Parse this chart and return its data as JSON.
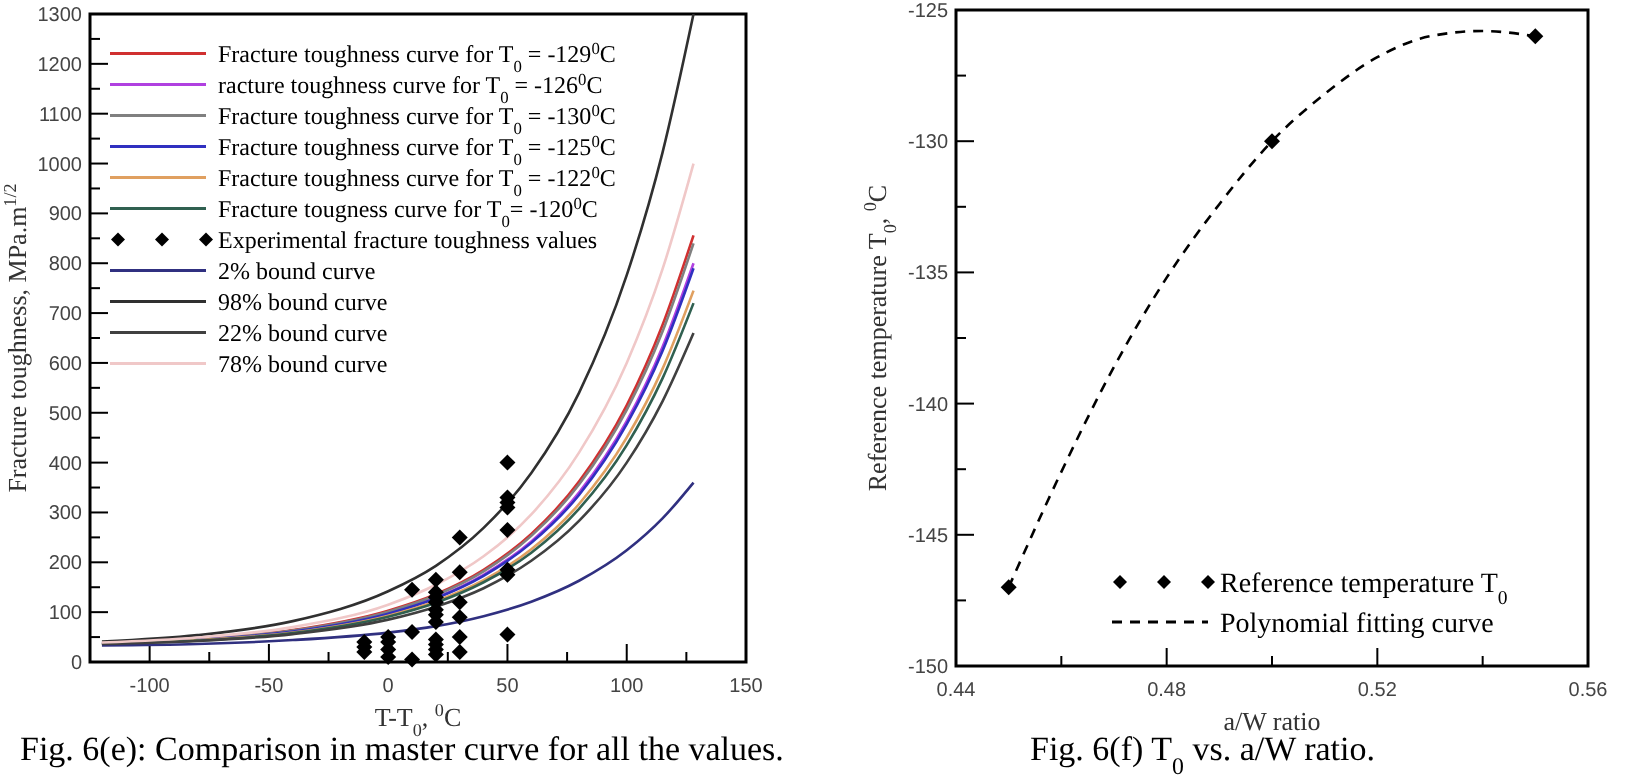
{
  "chart_data": [
    {
      "type": "line",
      "xlabel": "T-T$_{0}$, $^{0}$C",
      "ylabel": "Fracture toughness, MPa.m$^{1/2}$",
      "annotations": [
        "Fig. 6(e): Comparison in master curve for all the values."
      ],
      "xlim": [
        -125,
        150
      ],
      "ylim": [
        0,
        1300
      ],
      "xticks": [
        -100,
        {
          "value": -75,
          "label": null
        },
        -50,
        {
          "value": -25,
          "label": null
        },
        0,
        {
          "value": 25,
          "label": null
        },
        50,
        {
          "value": 75,
          "label": null
        },
        100,
        {
          "value": 125,
          "label": null
        },
        150
      ],
      "yticks": [
        0,
        {
          "value": 50,
          "label": null
        },
        100,
        {
          "value": 150,
          "label": null
        },
        200,
        {
          "value": 250,
          "label": null
        },
        300,
        {
          "value": 350,
          "label": null
        },
        400,
        {
          "value": 450,
          "label": null
        },
        500,
        {
          "value": 550,
          "label": null
        },
        600,
        {
          "value": 650,
          "label": null
        },
        700,
        {
          "value": 750,
          "label": null
        },
        800,
        {
          "value": 850,
          "label": null
        },
        900,
        {
          "value": 950,
          "label": null
        },
        1000,
        {
          "value": 1050,
          "label": null
        },
        1100,
        {
          "value": 1150,
          "label": null
        },
        1200,
        {
          "value": 1250,
          "label": null
        },
        1300
      ],
      "legend": "top left",
      "x": [
        -120,
        -80,
        -40,
        0,
        20,
        40,
        60,
        80,
        100,
        115,
        128
      ],
      "series": [
        {
          "name": "Fracture toughness curve for T$_{0}$ = -129$^{0}$C",
          "color": "#d03030",
          "values": [
            37,
            46,
            64,
            103,
            136,
            185,
            257,
            362,
            515,
            676,
            856
          ]
        },
        {
          "name": "racture toughness curve for T$_{0}$ = -126$^{0}$C",
          "color": "#b040e0",
          "values": [
            null,
            null,
            null,
            98,
            129,
            175,
            242,
            340,
            483,
            632,
            800
          ]
        },
        {
          "name": "Fracture toughness curve for T$_{0}$ = -130$^{0}$C",
          "color": "#808080",
          "values": [
            37,
            46,
            63,
            101,
            134,
            182,
            253,
            356,
            506,
            663,
            840
          ]
        },
        {
          "name": "Fracture toughness curve for T$_{0}$ = -125$^{0}$C",
          "color": "#3030c0",
          "values": [
            37,
            45,
            61,
            97,
            128,
            173,
            239,
            335,
            477,
            624,
            790
          ]
        },
        {
          "name": "Fracture toughness curve for T$_{0}$ = -122$^{0}$C",
          "color": "#e0a060",
          "values": [
            36,
            44,
            59,
            93,
            122,
            164,
            226,
            317,
            450,
            588,
            745
          ]
        },
        {
          "name": "Fracture tougness curve for T$_{0}$= -120$^{0}$C",
          "color": "#306050",
          "values": [
            36,
            43,
            58,
            91,
            119,
            160,
            219,
            307,
            435,
            569,
            720
          ]
        },
        {
          "name": "Experimental fracture toughness values",
          "type": "scatter",
          "marker": "diamond",
          "color": "#000000",
          "x": [
            -10,
            -10,
            -10,
            0,
            0,
            0,
            0,
            10,
            10,
            10,
            20,
            20,
            20,
            20,
            20,
            20,
            20,
            20,
            20,
            20,
            20,
            30,
            30,
            30,
            30,
            30,
            30,
            50,
            50,
            50,
            50,
            50,
            50,
            50,
            50
          ],
          "values": [
            20,
            30,
            40,
            10,
            25,
            40,
            50,
            5,
            60,
            145,
            15,
            25,
            35,
            45,
            80,
            95,
            105,
            120,
            130,
            140,
            165,
            20,
            50,
            90,
            120,
            180,
            250,
            55,
            175,
            185,
            265,
            310,
            320,
            330,
            400
          ]
        },
        {
          "name": "2% bound curve",
          "color": "#303080",
          "values": [
            33,
            36,
            44,
            59,
            72,
            92,
            121,
            163,
            224,
            288,
            360
          ]
        },
        {
          "name": "98% bound curve",
          "color": "#303030",
          "values": [
            41,
            54,
            82,
            142,
            193,
            269,
            379,
            540,
            776,
            1022,
            1300
          ]
        },
        {
          "name": "22% bound curve",
          "color": "#404040",
          "values": [
            36,
            42,
            56,
            85,
            111,
            148,
            203,
            283,
            400,
            523,
            660
          ]
        },
        {
          "name": "78% bound curve",
          "color": "#f0c8c8",
          "values": [
            39,
            49,
            70,
            115,
            155,
            212,
            296,
            420,
            600,
            788,
            1000
          ]
        }
      ]
    },
    {
      "type": "scatter",
      "xlabel": "a/W ratio",
      "ylabel": "Reference temperature T$_{0}$, $^{0}$C",
      "annotations": [
        "Fig. 6(f) T$_{0}$ vs. a/W ratio."
      ],
      "xlim": [
        0.44,
        0.56
      ],
      "ylim": [
        -150,
        -125
      ],
      "xticks": [
        0.44,
        {
          "value": 0.46,
          "label": null
        },
        0.48,
        {
          "value": 0.5,
          "label": null
        },
        0.52,
        {
          "value": 0.54,
          "label": null
        },
        0.56
      ],
      "yticks": [
        -150,
        {
          "value": -147.5,
          "label": null
        },
        -145,
        {
          "value": -142.5,
          "label": null
        },
        -140,
        {
          "value": -137.5,
          "label": null
        },
        -135,
        {
          "value": -132.5,
          "label": null
        },
        -130,
        {
          "value": -127.5,
          "label": null
        },
        -125
      ],
      "legend": "bottom right",
      "series": [
        {
          "name": "Reference temperature T$_{0}$",
          "marker": "diamond",
          "color": "#000000",
          "x": [
            0.45,
            0.5,
            0.55
          ],
          "values": [
            -147,
            -130,
            -126
          ]
        },
        {
          "name": "Polynomial fitting curve",
          "type": "line",
          "line_style": "dashed",
          "color": "#000000",
          "x": [
            0.45,
            0.46,
            0.47,
            0.48,
            0.49,
            0.5,
            0.51,
            0.52,
            0.53,
            0.54,
            0.55
          ],
          "values": [
            -147,
            -142.6,
            -138.6,
            -135.2,
            -132.4,
            -130,
            -128.2,
            -126.8,
            -126,
            -125.8,
            -126
          ]
        }
      ]
    }
  ]
}
